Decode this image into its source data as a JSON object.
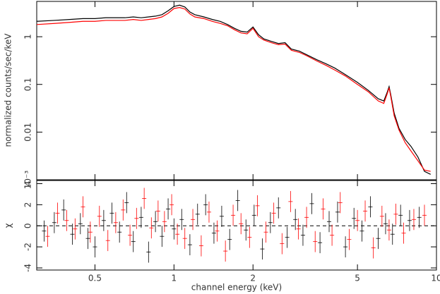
{
  "chart_data": [
    {
      "type": "line",
      "ylabel": "normalized counts/sec/keV",
      "xlog": true,
      "ylog": true,
      "xlim": [
        0.3,
        10
      ],
      "ylim": [
        0.001,
        5.5
      ],
      "yticks": [
        {
          "value": 0.001,
          "label": "10⁻³"
        },
        0.01,
        0.1,
        1
      ],
      "x": [
        0.3,
        0.35,
        0.4,
        0.45,
        0.5,
        0.55,
        0.6,
        0.65,
        0.7,
        0.75,
        0.8,
        0.85,
        0.9,
        0.95,
        1.0,
        1.05,
        1.1,
        1.15,
        1.2,
        1.3,
        1.4,
        1.5,
        1.6,
        1.7,
        1.8,
        1.9,
        2.0,
        2.1,
        2.2,
        2.35,
        2.5,
        2.65,
        2.8,
        3.0,
        3.2,
        3.5,
        3.8,
        4.1,
        4.5,
        5.0,
        5.5,
        6.0,
        6.3,
        6.5,
        6.6,
        6.7,
        6.9,
        7.2,
        7.6,
        8.0,
        8.5,
        9.0,
        9.5
      ],
      "series": [
        {
          "color": "#000000",
          "values": [
            2.1,
            2.2,
            2.3,
            2.4,
            2.4,
            2.5,
            2.5,
            2.5,
            2.6,
            2.5,
            2.6,
            2.7,
            2.9,
            3.5,
            4.3,
            4.6,
            4.2,
            3.3,
            2.9,
            2.6,
            2.3,
            2.1,
            1.8,
            1.5,
            1.3,
            1.25,
            1.6,
            1.1,
            0.9,
            0.8,
            0.72,
            0.75,
            0.55,
            0.5,
            0.42,
            0.33,
            0.27,
            0.22,
            0.16,
            0.11,
            0.075,
            0.05,
            0.045,
            0.07,
            0.09,
            0.06,
            0.025,
            0.012,
            0.007,
            0.005,
            0.003,
            0.0015,
            0.0013
          ]
        },
        {
          "color": "#ff0000",
          "values": [
            1.8,
            1.9,
            2.0,
            2.1,
            2.1,
            2.2,
            2.2,
            2.2,
            2.3,
            2.2,
            2.3,
            2.4,
            2.6,
            3.1,
            3.9,
            4.1,
            3.8,
            3.0,
            2.6,
            2.4,
            2.1,
            1.9,
            1.7,
            1.4,
            1.2,
            1.15,
            1.5,
            1.0,
            0.85,
            0.75,
            0.68,
            0.7,
            0.52,
            0.47,
            0.4,
            0.31,
            0.25,
            0.2,
            0.15,
            0.1,
            0.07,
            0.045,
            0.04,
            0.065,
            0.085,
            0.055,
            0.022,
            0.011,
            0.006,
            0.004,
            0.0025,
            0.0016,
            0.0015
          ]
        }
      ]
    },
    {
      "type": "errorbar",
      "ylabel": "χ",
      "xlabel": "channel energy (keV)",
      "xlog": true,
      "xlim": [
        0.3,
        10
      ],
      "ylim": [
        -4.2,
        4.3
      ],
      "xticks": [
        0.5,
        1,
        2,
        5,
        10
      ],
      "yticks": [
        -4,
        -2,
        0,
        2,
        4
      ],
      "series": [
        {
          "color": "#000000",
          "error": 1,
          "x": [
            0.32,
            0.35,
            0.38,
            0.41,
            0.44,
            0.47,
            0.5,
            0.54,
            0.58,
            0.62,
            0.66,
            0.7,
            0.75,
            0.8,
            0.85,
            0.9,
            0.95,
            1.0,
            1.07,
            1.15,
            1.23,
            1.32,
            1.42,
            1.52,
            1.63,
            1.75,
            1.88,
            2.02,
            2.17,
            2.33,
            2.5,
            2.7,
            2.9,
            3.1,
            3.35,
            3.6,
            3.9,
            4.2,
            4.5,
            4.85,
            5.2,
            5.6,
            6.0,
            6.4,
            6.8,
            7.3,
            7.9,
            8.6
          ],
          "values": [
            -0.5,
            0.3,
            1.5,
            -0.8,
            0.2,
            -1.2,
            -2.0,
            0.5,
            1.2,
            -0.6,
            2.2,
            -1.5,
            0.8,
            -2.5,
            0.4,
            -1.0,
            1.6,
            -0.3,
            0.6,
            -1.8,
            1.1,
            2.0,
            -0.7,
            0.9,
            -1.3,
            2.4,
            -0.4,
            1.0,
            -2.2,
            0.3,
            1.7,
            -1.1,
            0.6,
            -0.9,
            2.1,
            -1.6,
            0.4,
            1.3,
            -2.0,
            0.7,
            -0.5,
            1.8,
            -1.2,
            0.2,
            -0.8,
            1.0,
            0.5,
            0.8
          ]
        },
        {
          "color": "#ff0000",
          "error": 1,
          "x": [
            0.33,
            0.36,
            0.39,
            0.42,
            0.45,
            0.48,
            0.52,
            0.56,
            0.6,
            0.64,
            0.68,
            0.72,
            0.77,
            0.82,
            0.87,
            0.92,
            0.98,
            1.03,
            1.1,
            1.18,
            1.27,
            1.36,
            1.46,
            1.57,
            1.68,
            1.8,
            1.94,
            2.08,
            2.24,
            2.4,
            2.58,
            2.78,
            2.98,
            3.2,
            3.45,
            3.7,
            4.0,
            4.3,
            4.65,
            5.0,
            5.35,
            5.75,
            6.2,
            6.6,
            7.0,
            7.5,
            8.2,
            9.0
          ],
          "values": [
            -1.0,
            1.2,
            0.5,
            -0.3,
            1.8,
            -0.6,
            0.9,
            -1.4,
            0.3,
            1.5,
            -0.9,
            0.7,
            2.6,
            -0.2,
            1.4,
            0.4,
            2.0,
            -0.8,
            -1.2,
            0.6,
            -1.9,
            1.3,
            -0.5,
            -2.4,
            1.0,
            0.2,
            -1.1,
            1.9,
            -0.6,
            1.2,
            -1.7,
            2.3,
            -0.3,
            0.8,
            -1.5,
            1.6,
            -0.9,
            2.2,
            -1.3,
            0.5,
            1.4,
            -2.1,
            0.9,
            -0.4,
            1.1,
            -0.7,
            0.6,
            1.0
          ]
        }
      ]
    }
  ]
}
